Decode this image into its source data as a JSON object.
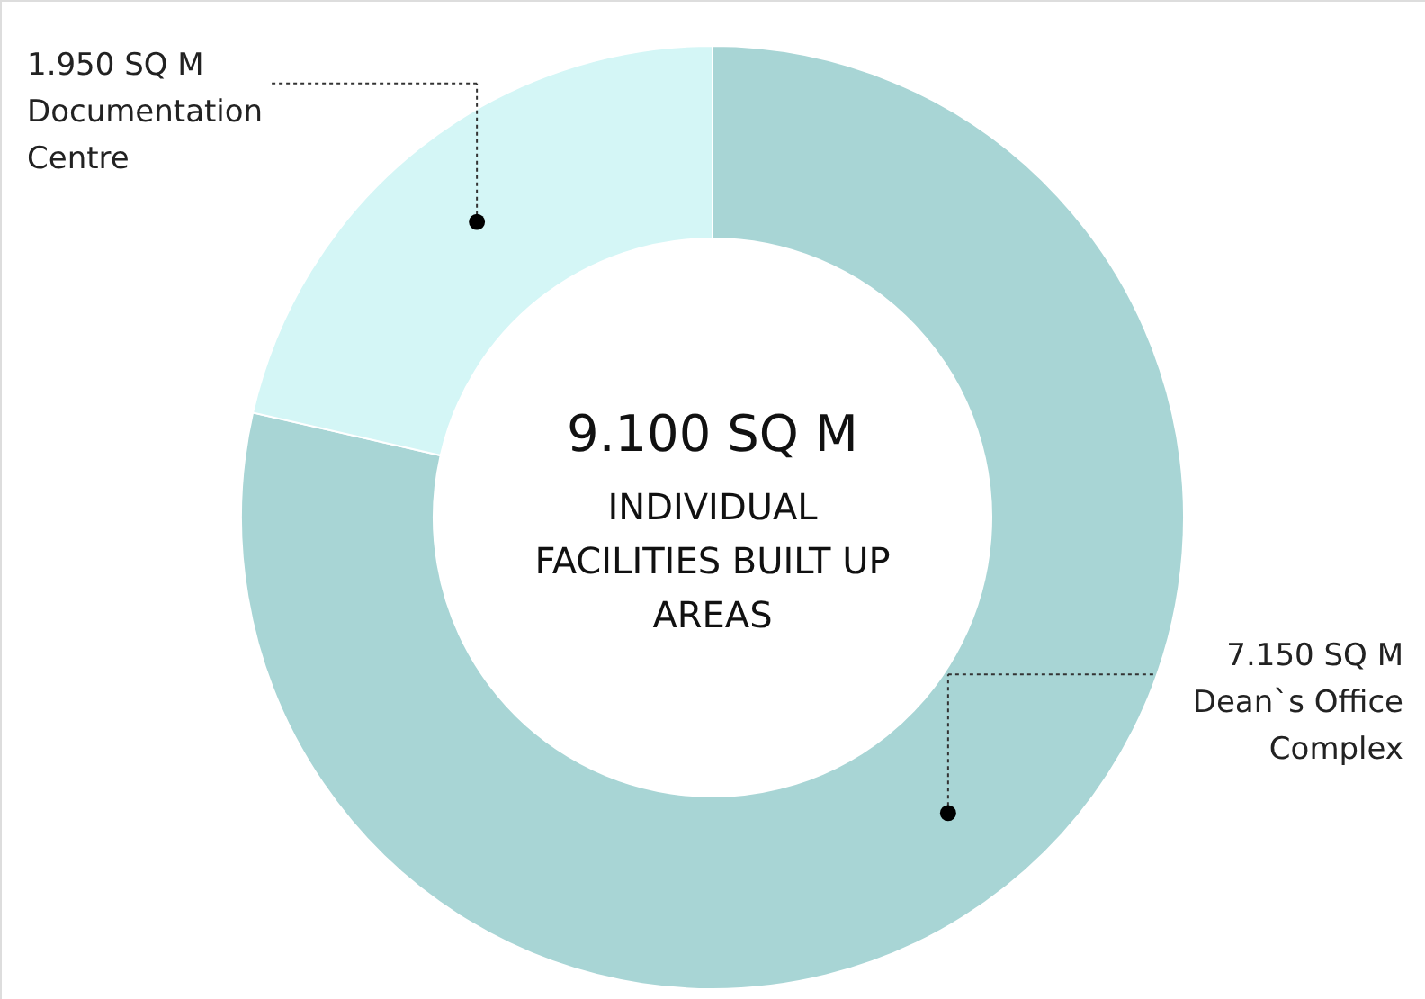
{
  "chart_data": {
    "type": "donut",
    "title": "9.100 SQ M",
    "subtitle": "INDIVIDUAL FACILITIES BUILT UP AREAS",
    "categories": [
      "Dean`s Office Complex",
      "Documentation Centre"
    ],
    "values": [
      7150,
      1950
    ],
    "value_labels": [
      "7.150 SQ M",
      "1.950 SQ M"
    ],
    "colors": [
      "#a8d5d5",
      "#d4f6f6"
    ]
  }
}
